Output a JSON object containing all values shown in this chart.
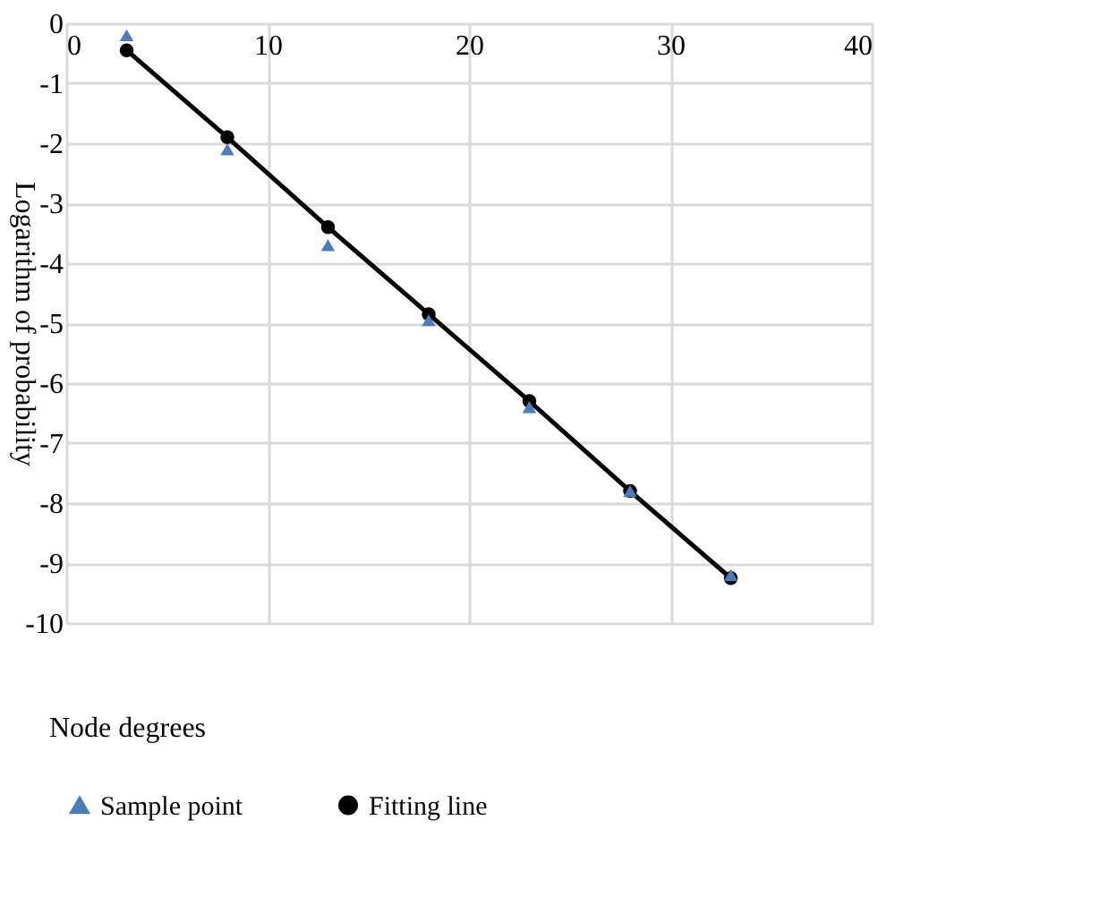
{
  "chart_data": {
    "type": "scatter",
    "xlabel": "Node degrees",
    "ylabel": "Logarithm of probability",
    "xlim": [
      0,
      40
    ],
    "xticks": [
      0,
      10,
      20,
      30,
      40
    ],
    "ylim": [
      -10,
      0
    ],
    "yticks": [
      -10,
      -9,
      -8,
      -7,
      -6,
      -5,
      -4,
      -3,
      -2,
      -1,
      0
    ],
    "grid": true,
    "legend": "bottom",
    "series": [
      {
        "name": "Sample point",
        "type": "scatter",
        "marker": "triangle",
        "color": "#4a7ebb",
        "x": [
          3,
          8,
          13,
          18,
          23,
          28,
          33
        ],
        "values": [
          -0.2,
          -2.1,
          -3.7,
          -4.95,
          -6.4,
          -7.8,
          -9.2
        ]
      },
      {
        "name": "Fitting line",
        "type": "line",
        "marker": "circle",
        "line_style": "solid",
        "color": "#000000",
        "x": [
          3,
          8,
          13,
          18,
          23,
          28,
          33
        ],
        "values": [
          -0.45,
          -1.9,
          -3.4,
          -4.85,
          -6.3,
          -7.8,
          -9.25
        ]
      }
    ]
  }
}
